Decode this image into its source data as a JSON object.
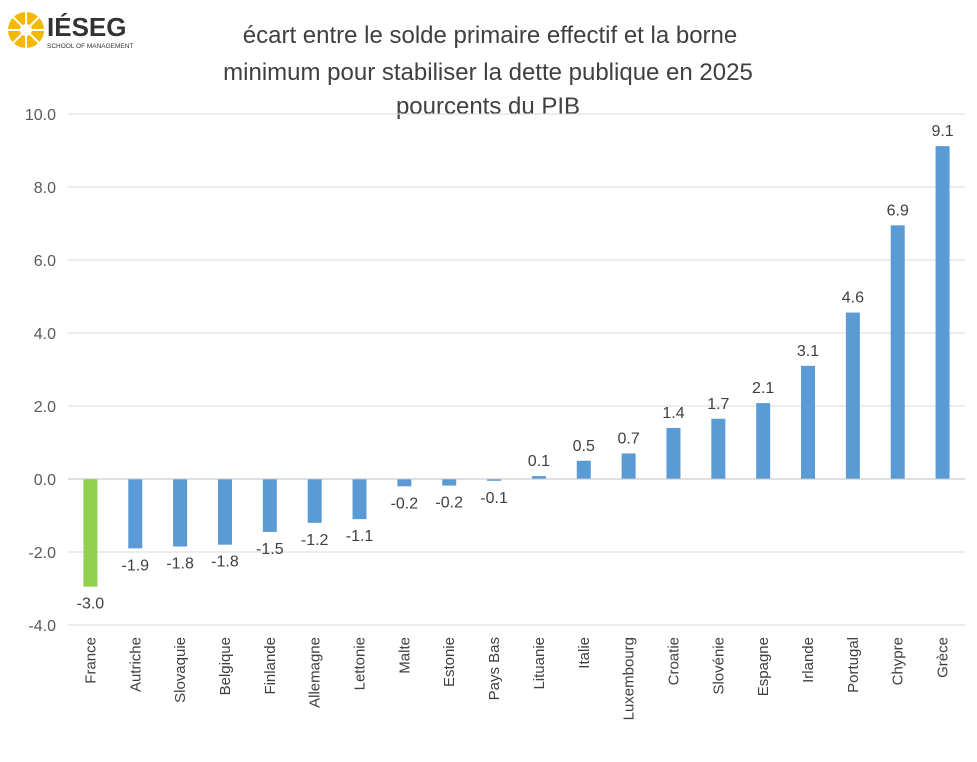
{
  "logo": {
    "name": "IÉSEG",
    "tagline": "SCHOOL OF MANAGEMENT"
  },
  "chart_data": {
    "type": "bar",
    "title_lines": [
      "écart entre le solde primaire effectif et la borne",
      "minimum pour stabiliser la dette publique en 2025",
      "pourcents du PIB"
    ],
    "xlabel": "",
    "ylabel": "",
    "ylim": [
      -4.0,
      10.0
    ],
    "yticks": [
      10.0,
      8.0,
      6.0,
      4.0,
      2.0,
      0.0,
      -2.0,
      -4.0
    ],
    "ytick_labels": [
      "10.0",
      "8.0",
      "6.0",
      "4.0",
      "2.0",
      "0.0",
      "-2.0",
      "-4.0"
    ],
    "grid": true,
    "legend": "none",
    "categories": [
      "France",
      "Autriche",
      "Slovaquie",
      "Belgique",
      "Finlande",
      "Allemagne",
      "Lettonie",
      "Malte",
      "Estonie",
      "Pays Bas",
      "Lituanie",
      "Italie",
      "Luxembourg",
      "Croatie",
      "Slovénie",
      "Espagne",
      "Irlande",
      "Portugal",
      "Chypre",
      "Grèce"
    ],
    "values": [
      -2.95,
      -1.9,
      -1.85,
      -1.8,
      -1.45,
      -1.2,
      -1.1,
      -0.2,
      -0.18,
      -0.05,
      0.08,
      0.5,
      0.7,
      1.4,
      1.65,
      2.08,
      3.1,
      4.56,
      6.95,
      9.12
    ],
    "value_labels": [
      "-3.0",
      "-1.9",
      "-1.8",
      "-1.8",
      "-1.5",
      "-1.2",
      "-1.1",
      "-0.2",
      "-0.2",
      "-0.1",
      "0.1",
      "0.5",
      "0.7",
      "1.4",
      "1.7",
      "2.1",
      "3.1",
      "4.6",
      "6.9",
      "9.1"
    ],
    "colors": {
      "default": "#5B9BD5",
      "highlight": "#92D050",
      "highlight_category": "France",
      "grid": "#D9D9D9",
      "logo": "#F5B800"
    }
  }
}
